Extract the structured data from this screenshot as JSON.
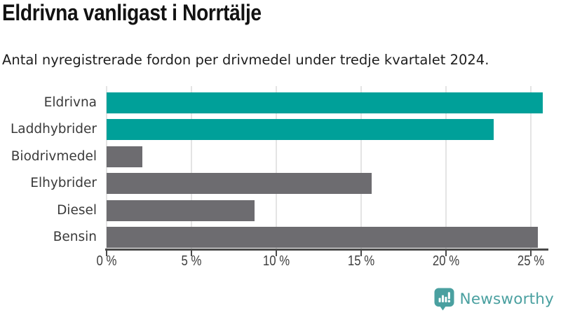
{
  "header": {
    "title": "Eldrivna vanligast i Norrtälje",
    "subtitle": "Antal nyregistrerade fordon per drivmedel under tredje kvartalet 2024."
  },
  "chart_data": {
    "type": "bar",
    "orientation": "horizontal",
    "title": "Eldrivna vanligast i Norrtälje",
    "subtitle": "Antal nyregistrerade fordon per drivmedel under tredje kvartalet 2024.",
    "categories": [
      "Eldrivna",
      "Laddhybrider",
      "Biodrivmedel",
      "Elhybrider",
      "Diesel",
      "Bensin"
    ],
    "values": [
      25.7,
      22.8,
      2.1,
      15.6,
      8.7,
      25.4
    ],
    "unit": "%",
    "xlim": [
      0,
      26
    ],
    "xticks": [
      0,
      5,
      10,
      15,
      20,
      25
    ],
    "xtick_labels": [
      "0 %",
      "5 %",
      "10 %",
      "15 %",
      "20 %",
      "25 %"
    ],
    "bar_colors": [
      "#00a099",
      "#00a099",
      "#6d6c70",
      "#6d6c70",
      "#6d6c70",
      "#6d6c70"
    ],
    "highlight_color": "#00a099",
    "default_color": "#6d6c70",
    "gridline_color": "#e4e4e4",
    "axis_color": "#4a4a4a",
    "grid": true,
    "legend": false,
    "xlabel": "",
    "ylabel": ""
  },
  "footer": {
    "brand": "Newsworthy",
    "brand_color": "#4aa0a0",
    "logo_icon": "bar-chart-speech-bubble-icon"
  }
}
